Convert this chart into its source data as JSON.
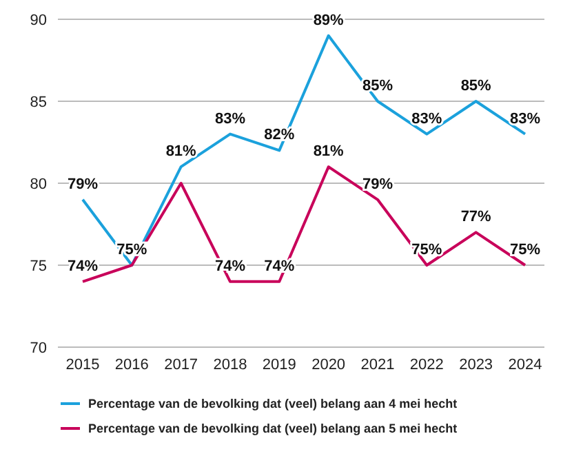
{
  "chart_data": {
    "type": "line",
    "categories": [
      "2015",
      "2016",
      "2017",
      "2018",
      "2019",
      "2020",
      "2021",
      "2022",
      "2023",
      "2024"
    ],
    "series": [
      {
        "name": "Percentage van de bevolking dat (veel) belang aan 4 mei hecht",
        "color": "#1ba1dc",
        "values": [
          79,
          75,
          81,
          83,
          82,
          89,
          85,
          83,
          85,
          83
        ],
        "value_labels": [
          "79%",
          null,
          "81%",
          "83%",
          "82%",
          "89%",
          "85%",
          "83%",
          "85%",
          "83%"
        ]
      },
      {
        "name": "Percentage van de bevolking dat (veel) belang aan 5 mei hecht",
        "color": "#c8005a",
        "values": [
          74,
          75,
          80,
          74,
          74,
          81,
          79,
          75,
          77,
          75
        ],
        "value_labels": [
          "74%",
          "75%",
          null,
          "74%",
          "74%",
          "81%",
          "79%",
          "75%",
          "77%",
          "75%"
        ]
      }
    ],
    "ylim": [
      70,
      90
    ],
    "yticks": [
      70,
      75,
      80,
      85,
      90
    ],
    "grid": "y",
    "legend": "bottom",
    "marker": "none",
    "line_style": "solid"
  }
}
